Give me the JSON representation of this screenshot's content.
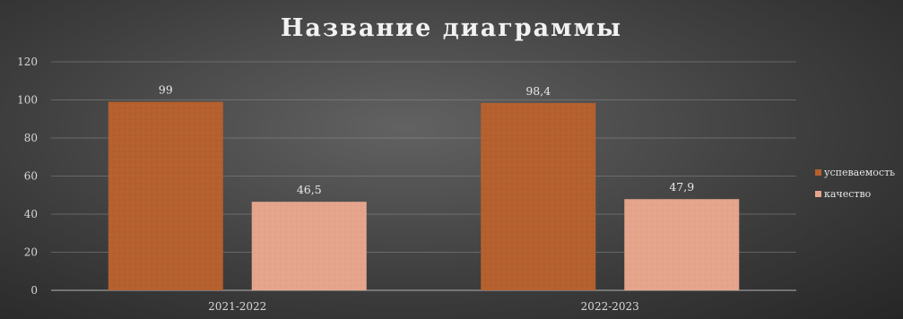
{
  "chart_data": {
    "type": "bar",
    "title": "Название диаграммы",
    "xlabel": "",
    "ylabel": "",
    "categories": [
      "2021-2022",
      "2022-2023"
    ],
    "series": [
      {
        "name": "успеваемость",
        "values": [
          99,
          98.4
        ],
        "value_labels": [
          "99",
          "98,4"
        ],
        "color": "#b5602e"
      },
      {
        "name": "качество",
        "values": [
          46.5,
          47.9
        ],
        "value_labels": [
          "46,5",
          "47,9"
        ],
        "color": "#e5a58c"
      }
    ],
    "ylim": [
      0,
      120
    ],
    "yticks": [
      0,
      20,
      40,
      60,
      80,
      100,
      120
    ],
    "grid": true,
    "legend": "right"
  }
}
